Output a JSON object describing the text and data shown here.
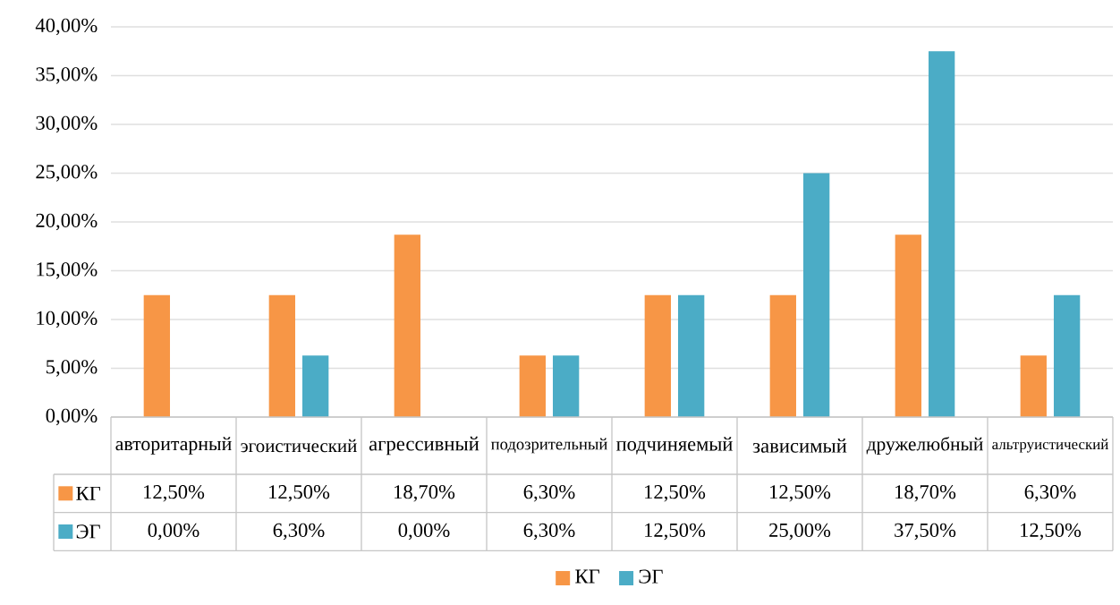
{
  "chart_data": {
    "type": "bar",
    "categories": [
      "авторитарный",
      "эгоистический",
      "агрессивный",
      "подозрительный",
      "подчиняемый",
      "зависимый",
      "дружелюбный",
      "альтруистический"
    ],
    "series": [
      {
        "name": "КГ",
        "color": "#f79646",
        "values": [
          12.5,
          12.5,
          18.7,
          6.3,
          12.5,
          12.5,
          18.7,
          6.3
        ],
        "value_labels": [
          "12,50%",
          "12,50%",
          "18,70%",
          "6,30%",
          "12,50%",
          "12,50%",
          "18,70%",
          "6,30%"
        ]
      },
      {
        "name": "ЭГ",
        "color": "#4bacc6",
        "values": [
          0,
          6.3,
          0,
          6.3,
          12.5,
          25,
          37.5,
          12.5
        ],
        "value_labels": [
          "0,00%",
          "6,30%",
          "0,00%",
          "6,30%",
          "12,50%",
          "25,00%",
          "37,50%",
          "12,50%"
        ]
      }
    ],
    "ylim": [
      0,
      40
    ],
    "yticks": [
      {
        "value": 0,
        "label": "0,00%"
      },
      {
        "value": 5,
        "label": "5,00%"
      },
      {
        "value": 10,
        "label": "10,00%"
      },
      {
        "value": 15,
        "label": "15,00%"
      },
      {
        "value": 20,
        "label": "20,00%"
      },
      {
        "value": 25,
        "label": "25,00%"
      },
      {
        "value": 30,
        "label": "30,00%"
      },
      {
        "value": 35,
        "label": "35,00%"
      },
      {
        "value": 40,
        "label": "40,00%"
      }
    ],
    "grid": "y",
    "legend": "bottom"
  }
}
